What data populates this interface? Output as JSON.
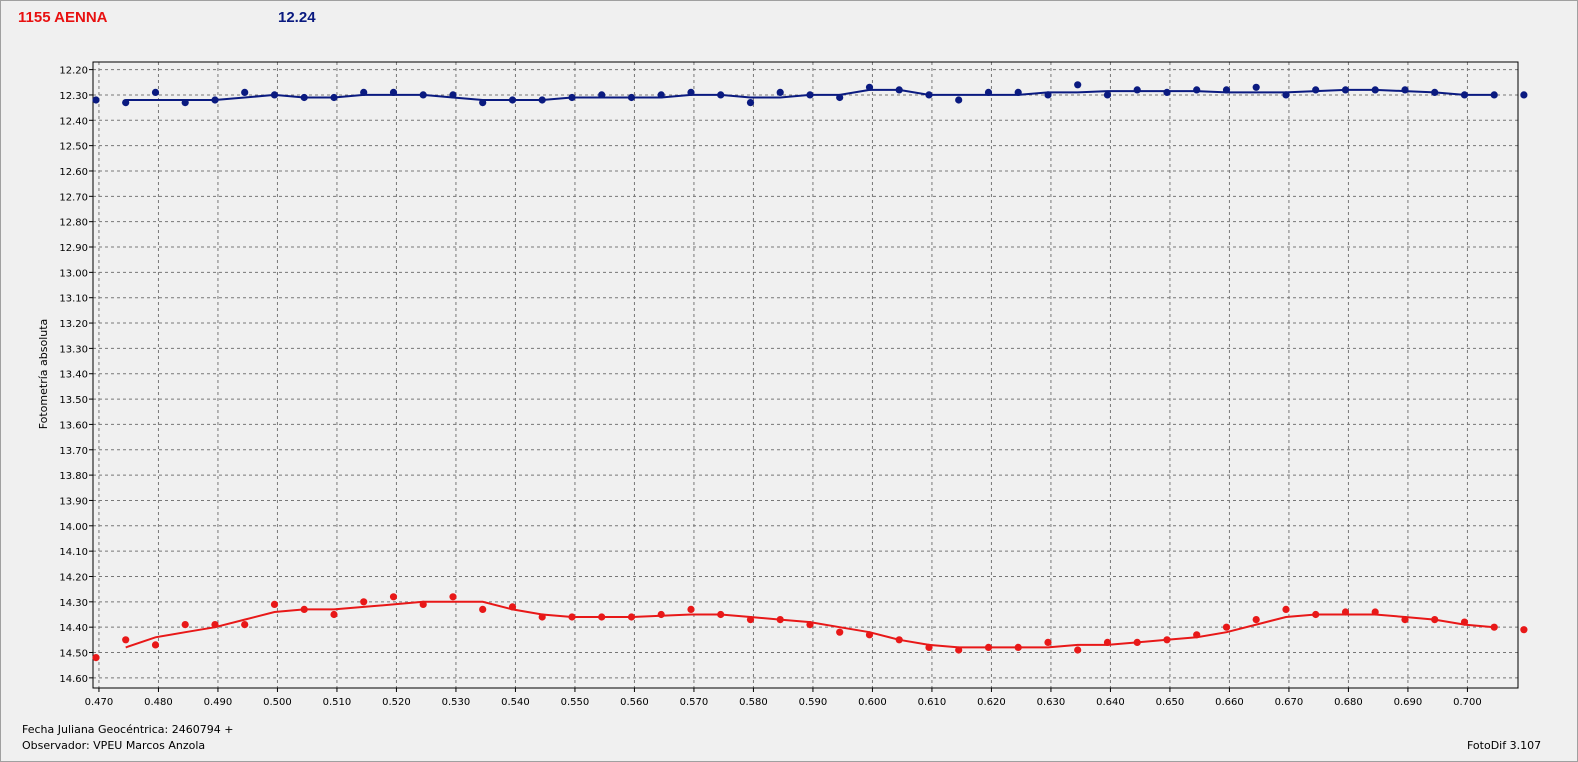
{
  "header": {
    "object_name": "1155 AENNA",
    "reference_mag": "12.24"
  },
  "footer": {
    "julian_date": "Fecha Juliana Geocéntrica: 2460794 +",
    "observer": "Observador: VPEU Marcos Anzola",
    "software": "FotoDif 3.107"
  },
  "chart_data": {
    "type": "scatter",
    "ylabel": "Fotometría absoluta",
    "xlabel": "",
    "xlim": [
      0.469,
      0.7085
    ],
    "ylim": [
      12.17,
      14.64
    ],
    "y_reversed": true,
    "grid": true,
    "x_ticks": [
      "0.470",
      "0.480",
      "0.490",
      "0.500",
      "0.510",
      "0.520",
      "0.530",
      "0.540",
      "0.550",
      "0.560",
      "0.570",
      "0.580",
      "0.590",
      "0.600",
      "0.610",
      "0.620",
      "0.630",
      "0.640",
      "0.650",
      "0.660",
      "0.670",
      "0.680",
      "0.690",
      "0.700"
    ],
    "y_ticks": [
      "12.20",
      "12.30",
      "12.40",
      "12.50",
      "12.60",
      "12.70",
      "12.80",
      "12.90",
      "13.00",
      "13.10",
      "13.20",
      "13.30",
      "13.40",
      "13.50",
      "13.60",
      "13.70",
      "13.80",
      "13.90",
      "14.00",
      "14.10",
      "14.20",
      "14.30",
      "14.40",
      "14.50",
      "14.60"
    ],
    "series": [
      {
        "color": "#0a1a80",
        "x": [
          0.4695,
          0.4745,
          0.4795,
          0.4845,
          0.4895,
          0.4945,
          0.4995,
          0.5045,
          0.5095,
          0.5145,
          0.5195,
          0.5245,
          0.5295,
          0.5345,
          0.5395,
          0.5445,
          0.5495,
          0.5545,
          0.5595,
          0.5645,
          0.5695,
          0.5745,
          0.5795,
          0.5845,
          0.5895,
          0.5945,
          0.5995,
          0.6045,
          0.6095,
          0.6145,
          0.6195,
          0.6245,
          0.6295,
          0.6345,
          0.6395,
          0.6445,
          0.6495,
          0.6545,
          0.6595,
          0.6645,
          0.6695,
          0.6745,
          0.6795,
          0.6845,
          0.6895,
          0.6945,
          0.6995,
          0.7045,
          0.7095
        ],
        "y": [
          12.32,
          12.33,
          12.29,
          12.33,
          12.32,
          12.29,
          12.3,
          12.31,
          12.31,
          12.29,
          12.29,
          12.3,
          12.3,
          12.33,
          12.32,
          12.32,
          12.31,
          12.3,
          12.31,
          12.3,
          12.29,
          12.3,
          12.33,
          12.29,
          12.3,
          12.31,
          12.27,
          12.28,
          12.3,
          12.32,
          12.29,
          12.29,
          12.3,
          12.26,
          12.3,
          12.28,
          12.29,
          12.28,
          12.28,
          12.27,
          12.3,
          12.28,
          12.28,
          12.28,
          12.28,
          12.29,
          12.3,
          12.3,
          12.3
        ],
        "fit_x": [
          0.4745,
          0.4795,
          0.4845,
          0.4895,
          0.4945,
          0.4995,
          0.5045,
          0.5095,
          0.5145,
          0.5195,
          0.5245,
          0.5295,
          0.5345,
          0.5395,
          0.5445,
          0.5495,
          0.5545,
          0.5595,
          0.5645,
          0.5695,
          0.5745,
          0.5795,
          0.5845,
          0.5895,
          0.5945,
          0.5995,
          0.6045,
          0.6095,
          0.6145,
          0.6195,
          0.6245,
          0.6295,
          0.6345,
          0.6395,
          0.6445,
          0.6495,
          0.6545,
          0.6595,
          0.6645,
          0.6695,
          0.6745,
          0.6795,
          0.6845,
          0.6895,
          0.6945,
          0.6995,
          0.7045
        ],
        "fit_y": [
          12.32,
          12.32,
          12.32,
          12.32,
          12.31,
          12.3,
          12.31,
          12.31,
          12.3,
          12.3,
          12.3,
          12.31,
          12.32,
          12.32,
          12.32,
          12.31,
          12.31,
          12.31,
          12.31,
          12.3,
          12.3,
          12.31,
          12.31,
          12.3,
          12.3,
          12.28,
          12.28,
          12.3,
          12.3,
          12.3,
          12.3,
          12.29,
          12.29,
          12.285,
          12.285,
          12.285,
          12.285,
          12.29,
          12.29,
          12.29,
          12.285,
          12.28,
          12.28,
          12.285,
          12.29,
          12.3,
          12.3
        ]
      },
      {
        "color": "#e81818",
        "x": [
          0.4695,
          0.4745,
          0.4795,
          0.4845,
          0.4895,
          0.4945,
          0.4995,
          0.5045,
          0.5095,
          0.5145,
          0.5195,
          0.5245,
          0.5295,
          0.5345,
          0.5395,
          0.5445,
          0.5495,
          0.5545,
          0.5595,
          0.5645,
          0.5695,
          0.5745,
          0.5795,
          0.5845,
          0.5895,
          0.5945,
          0.5995,
          0.6045,
          0.6095,
          0.6145,
          0.6195,
          0.6245,
          0.6295,
          0.6345,
          0.6395,
          0.6445,
          0.6495,
          0.6545,
          0.6595,
          0.6645,
          0.6695,
          0.6745,
          0.6795,
          0.6845,
          0.6895,
          0.6945,
          0.6995,
          0.7045,
          0.7095
        ],
        "y": [
          14.52,
          14.45,
          14.47,
          14.39,
          14.39,
          14.39,
          14.31,
          14.33,
          14.35,
          14.3,
          14.28,
          14.31,
          14.28,
          14.33,
          14.32,
          14.36,
          14.36,
          14.36,
          14.36,
          14.35,
          14.33,
          14.35,
          14.37,
          14.37,
          14.39,
          14.42,
          14.43,
          14.45,
          14.48,
          14.49,
          14.48,
          14.48,
          14.46,
          14.49,
          14.46,
          14.46,
          14.45,
          14.43,
          14.4,
          14.37,
          14.33,
          14.35,
          14.34,
          14.34,
          14.37,
          14.37,
          14.38,
          14.4,
          14.41
        ],
        "fit_x": [
          0.4745,
          0.4795,
          0.4845,
          0.4895,
          0.4945,
          0.4995,
          0.5045,
          0.5095,
          0.5145,
          0.5195,
          0.5245,
          0.5295,
          0.5345,
          0.5395,
          0.5445,
          0.5495,
          0.5545,
          0.5595,
          0.5645,
          0.5695,
          0.5745,
          0.5795,
          0.5845,
          0.5895,
          0.5945,
          0.5995,
          0.6045,
          0.6095,
          0.6145,
          0.6195,
          0.6245,
          0.6295,
          0.6345,
          0.6395,
          0.6445,
          0.6495,
          0.6545,
          0.6595,
          0.6645,
          0.6695,
          0.6745,
          0.6795,
          0.6845,
          0.6895,
          0.6945,
          0.6995,
          0.7045
        ],
        "fit_y": [
          14.48,
          14.44,
          14.42,
          14.4,
          14.37,
          14.34,
          14.33,
          14.33,
          14.32,
          14.31,
          14.3,
          14.3,
          14.3,
          14.33,
          14.35,
          14.36,
          14.36,
          14.36,
          14.355,
          14.35,
          14.35,
          14.36,
          14.37,
          14.38,
          14.4,
          14.42,
          14.45,
          14.47,
          14.48,
          14.48,
          14.48,
          14.48,
          14.47,
          14.47,
          14.46,
          14.45,
          14.44,
          14.42,
          14.39,
          14.36,
          14.35,
          14.35,
          14.35,
          14.36,
          14.37,
          14.39,
          14.4
        ]
      }
    ]
  }
}
